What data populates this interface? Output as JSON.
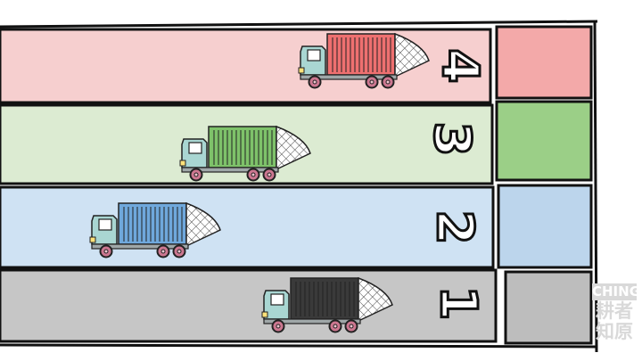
{
  "race": {
    "lanes": [
      {
        "id": "lane-4",
        "number": "4",
        "color": "#f6cfcf",
        "goal_color": "#f3a9a9",
        "truck_color": "#ee7070"
      },
      {
        "id": "lane-3",
        "number": "3",
        "color": "#dcebd2",
        "goal_color": "#9bcf87",
        "truck_color": "#7ec26a"
      },
      {
        "id": "lane-2",
        "number": "2",
        "color": "#cfe2f3",
        "goal_color": "#bcd5ec",
        "truck_color": "#6fa8dc"
      },
      {
        "id": "lane-1",
        "number": "1",
        "color": "#c6c6c6",
        "goal_color": "#bdbdbd",
        "truck_color": "#3a3a3a"
      }
    ]
  },
  "watermark": {
    "line1": "CHING",
    "line2": "耕者",
    "line3": "知原"
  }
}
